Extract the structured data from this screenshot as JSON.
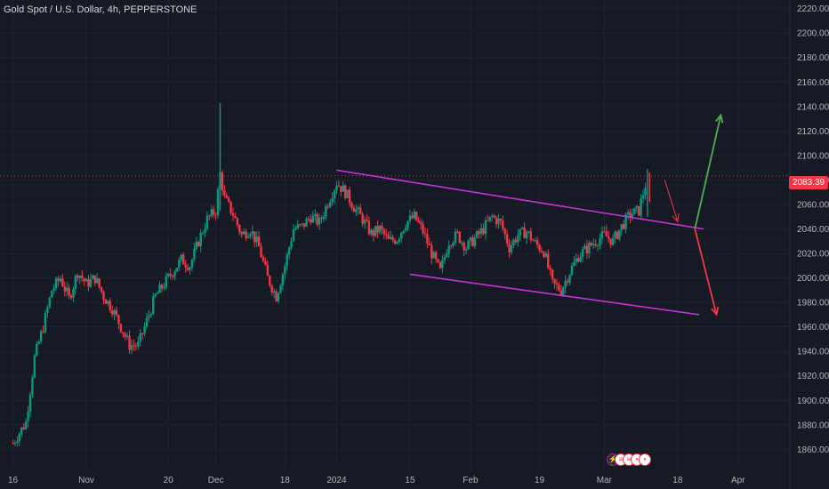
{
  "title": "Gold Spot / U.S. Dollar, 4h, PEPPERSTONE",
  "last_price": "2083.39",
  "colors": {
    "background": "#161a25",
    "up": "#089981",
    "down": "#f23645",
    "channel": "#c832d6",
    "arrow_up": "#4caf50",
    "arrow_down": "#f23645",
    "grid": "#1f2331"
  },
  "events_icons": [
    "lightning-icon",
    "us-flag-icon",
    "us-flag-icon",
    "event-icon",
    "event-icon"
  ],
  "chart_data": {
    "type": "candlestick",
    "instrument": "Gold Spot / U.S. Dollar",
    "timeframe": "4h",
    "broker": "PEPPERSTONE",
    "y_ticks": [
      "2220.00",
      "2200.00",
      "2180.00",
      "2160.00",
      "2140.00",
      "2120.00",
      "2100.00",
      "2080.00",
      "2060.00",
      "2040.00",
      "2020.00",
      "2000.00",
      "1980.00",
      "1960.00",
      "1940.00",
      "1920.00",
      "1900.00",
      "1880.00",
      "1860.00"
    ],
    "ylim": [
      1845,
      2227
    ],
    "x_ticks": [
      "16",
      "Nov",
      "20",
      "Dec",
      "18",
      "2024",
      "15",
      "Feb",
      "19",
      "Mar",
      "18",
      "Apr"
    ],
    "x_tick_index": [
      0,
      17,
      36,
      47,
      63,
      75,
      92,
      106,
      122,
      137,
      154,
      168
    ],
    "x_range": [
      -3,
      180
    ],
    "current_price": 2083.39,
    "price_path": [
      [
        0,
        1865
      ],
      [
        3,
        1882
      ],
      [
        5,
        1935
      ],
      [
        7,
        1960
      ],
      [
        9,
        1990
      ],
      [
        11,
        2000
      ],
      [
        13,
        1983
      ],
      [
        15,
        2005
      ],
      [
        17,
        1995
      ],
      [
        19,
        2000
      ],
      [
        21,
        1985
      ],
      [
        23,
        1975
      ],
      [
        25,
        1960
      ],
      [
        27,
        1945
      ],
      [
        29,
        1945
      ],
      [
        31,
        1965
      ],
      [
        33,
        1985
      ],
      [
        35,
        1995
      ],
      [
        37,
        2005
      ],
      [
        39,
        2015
      ],
      [
        41,
        2010
      ],
      [
        43,
        2030
      ],
      [
        45,
        2048
      ],
      [
        47,
        2055
      ],
      [
        48,
        2085
      ],
      [
        49,
        2065
      ],
      [
        51,
        2052
      ],
      [
        53,
        2035
      ],
      [
        55,
        2040
      ],
      [
        57,
        2025
      ],
      [
        59,
        2000
      ],
      [
        61,
        1985
      ],
      [
        63,
        2010
      ],
      [
        65,
        2040
      ],
      [
        67,
        2042
      ],
      [
        69,
        2050
      ],
      [
        71,
        2045
      ],
      [
        73,
        2062
      ],
      [
        75,
        2078
      ],
      [
        77,
        2070
      ],
      [
        79,
        2058
      ],
      [
        81,
        2048
      ],
      [
        83,
        2036
      ],
      [
        85,
        2040
      ],
      [
        87,
        2030
      ],
      [
        89,
        2032
      ],
      [
        91,
        2045
      ],
      [
        93,
        2050
      ],
      [
        95,
        2038
      ],
      [
        97,
        2020
      ],
      [
        99,
        2005
      ],
      [
        101,
        2030
      ],
      [
        103,
        2035
      ],
      [
        105,
        2025
      ],
      [
        107,
        2032
      ],
      [
        109,
        2040
      ],
      [
        111,
        2050
      ],
      [
        113,
        2045
      ],
      [
        115,
        2025
      ],
      [
        117,
        2035
      ],
      [
        119,
        2038
      ],
      [
        121,
        2028
      ],
      [
        123,
        2022
      ],
      [
        125,
        1995
      ],
      [
        127,
        1990
      ],
      [
        129,
        2005
      ],
      [
        131,
        2018
      ],
      [
        133,
        2024
      ],
      [
        135,
        2030
      ],
      [
        137,
        2035
      ],
      [
        139,
        2030
      ],
      [
        141,
        2042
      ],
      [
        143,
        2052
      ],
      [
        145,
        2055
      ],
      [
        147,
        2083
      ]
    ],
    "annotations": {
      "channel_upper": {
        "x": [
          75,
          160
        ],
        "y": [
          2088,
          2040
        ]
      },
      "channel_lower": {
        "x": [
          92,
          159
        ],
        "y": [
          2003,
          1970
        ]
      },
      "arrow_up": {
        "x": [
          158,
          164
        ],
        "y": [
          2040,
          2133
        ]
      },
      "arrow_down": {
        "x": [
          158,
          163
        ],
        "y": [
          2040,
          1970
        ]
      },
      "arrow_pullback": {
        "x": [
          151,
          154
        ],
        "y": [
          2080,
          2046
        ]
      }
    }
  }
}
